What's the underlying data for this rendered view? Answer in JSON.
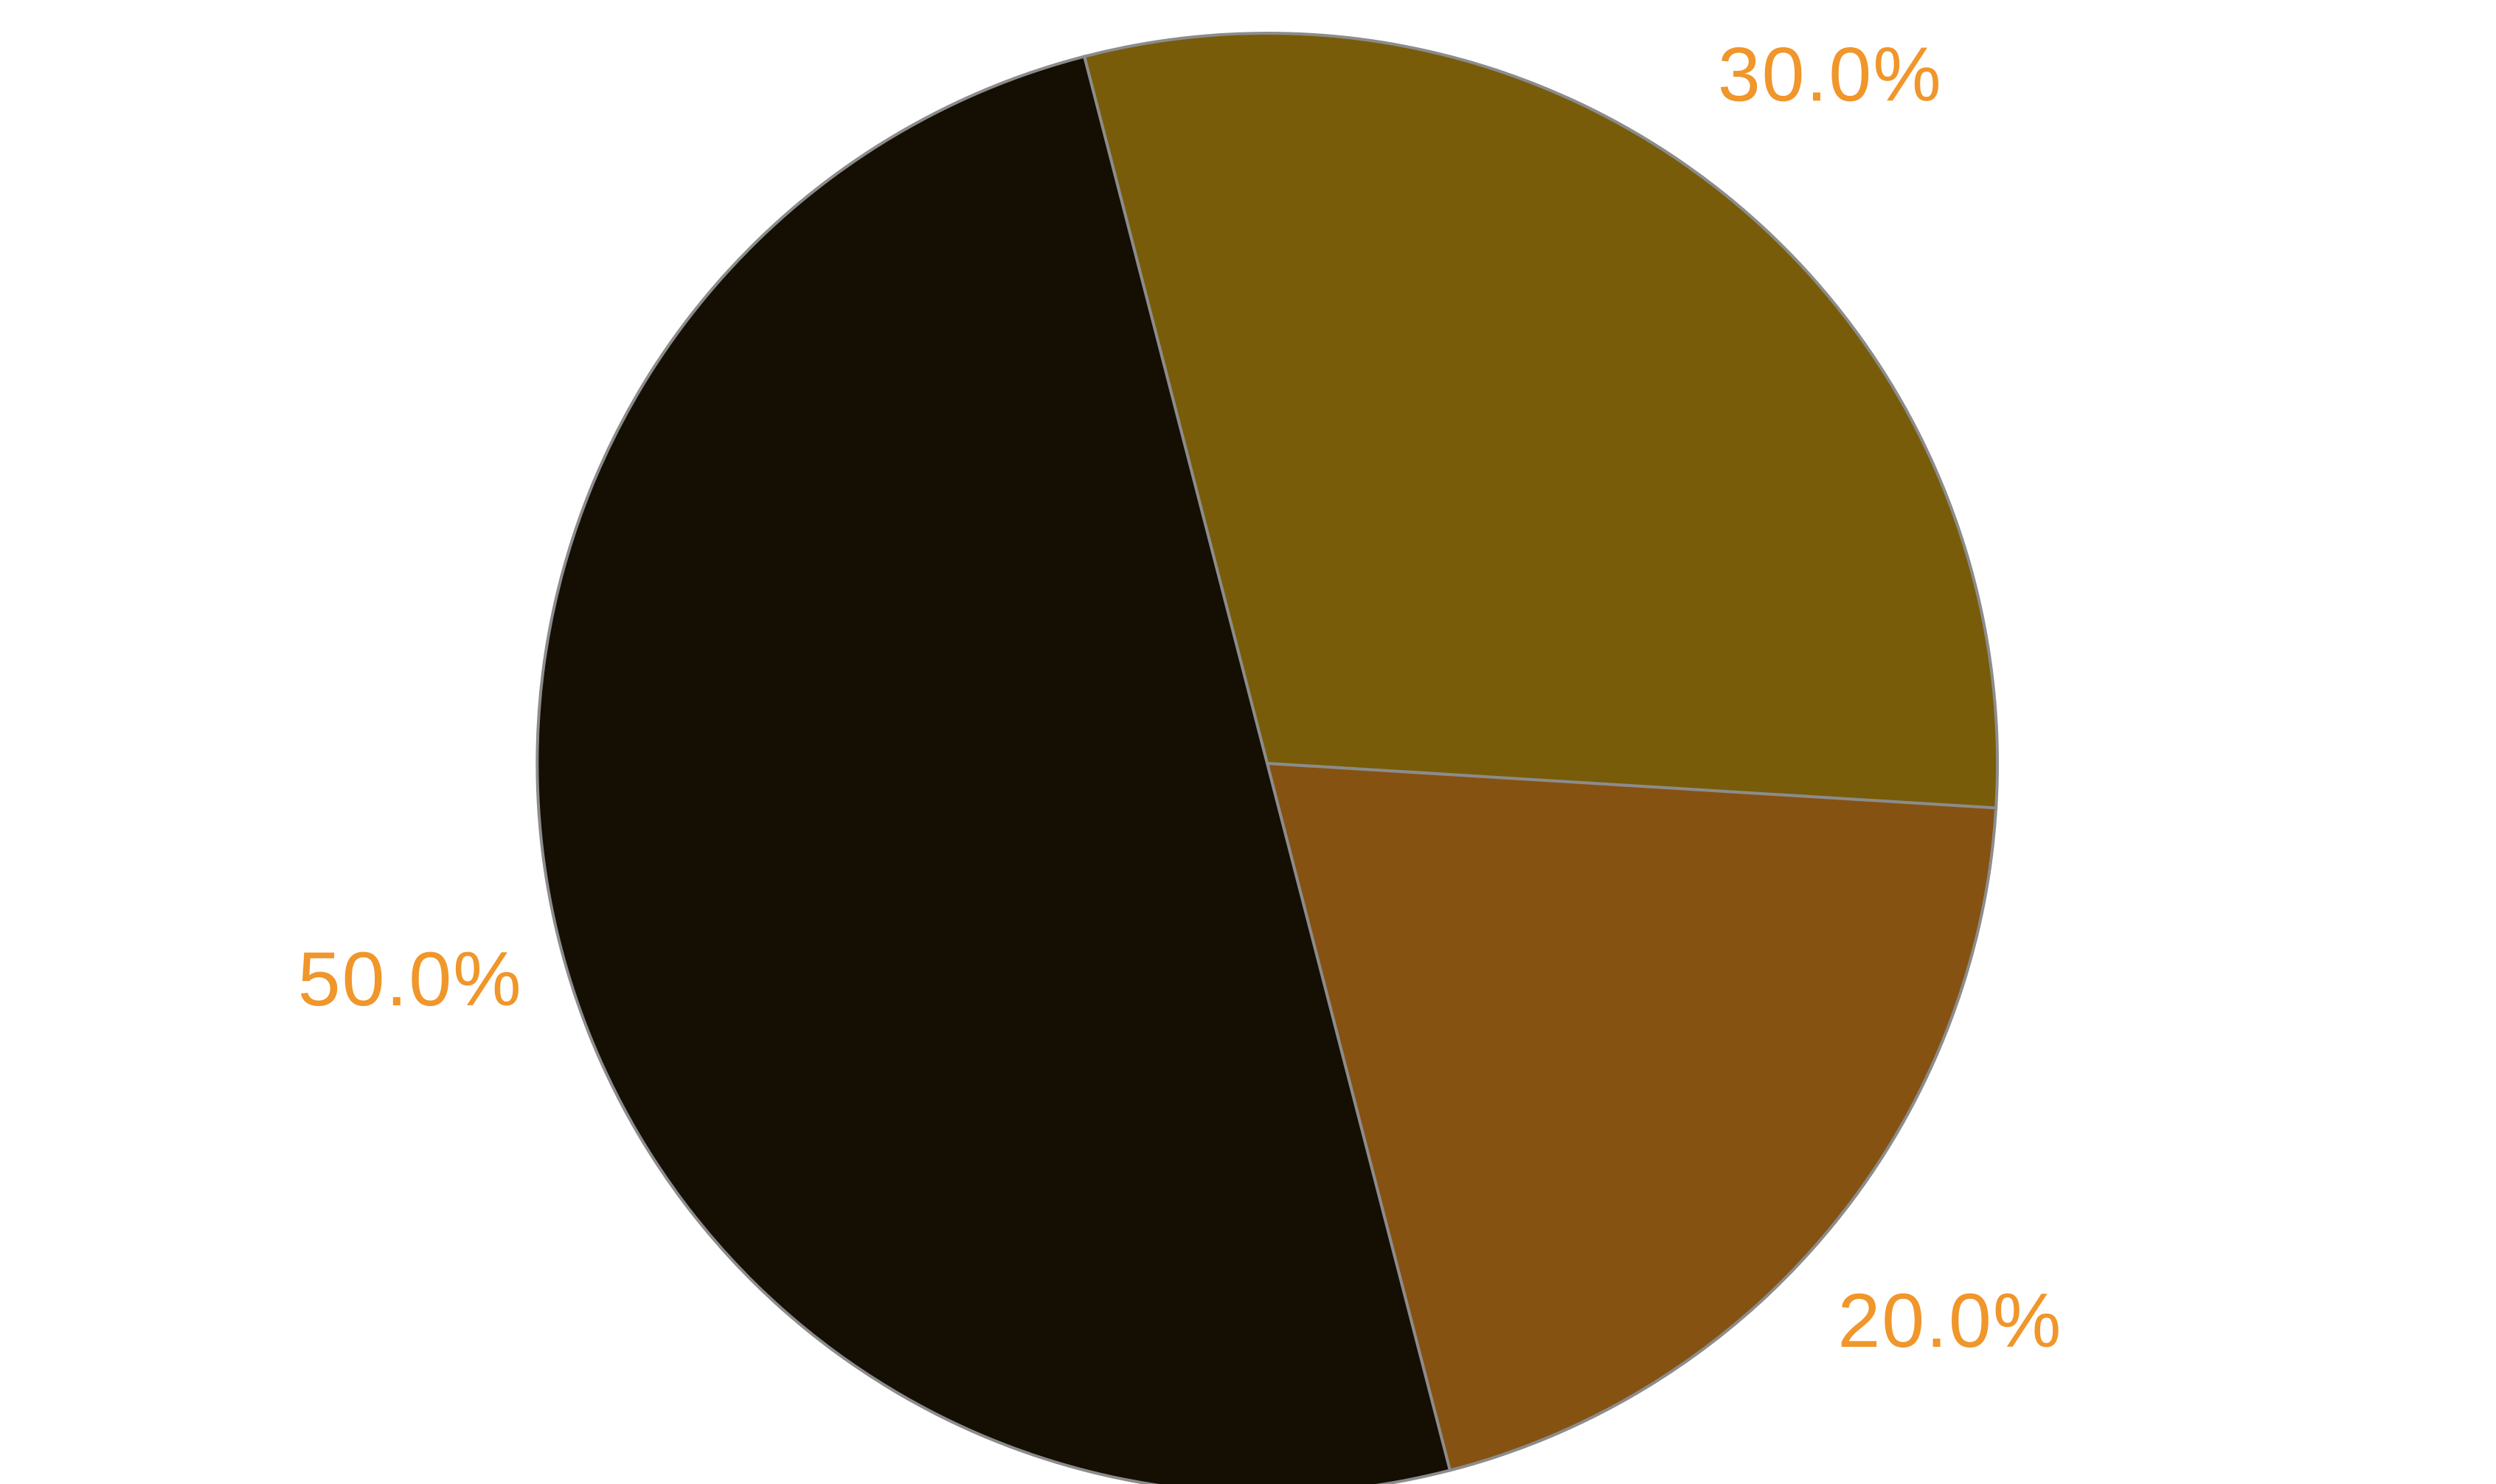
{
  "chart_data": {
    "type": "pie",
    "title": "",
    "start_angle_deg": 104.5,
    "direction": "clockwise",
    "label_color": "#f0962a",
    "slices": [
      {
        "label": "30.0%",
        "value": 30,
        "color": "#785c0a"
      },
      {
        "label": "20.0%",
        "value": 20,
        "color": "#865212"
      },
      {
        "label": "50.0%",
        "value": 50,
        "color": "#150e02"
      }
    ]
  }
}
